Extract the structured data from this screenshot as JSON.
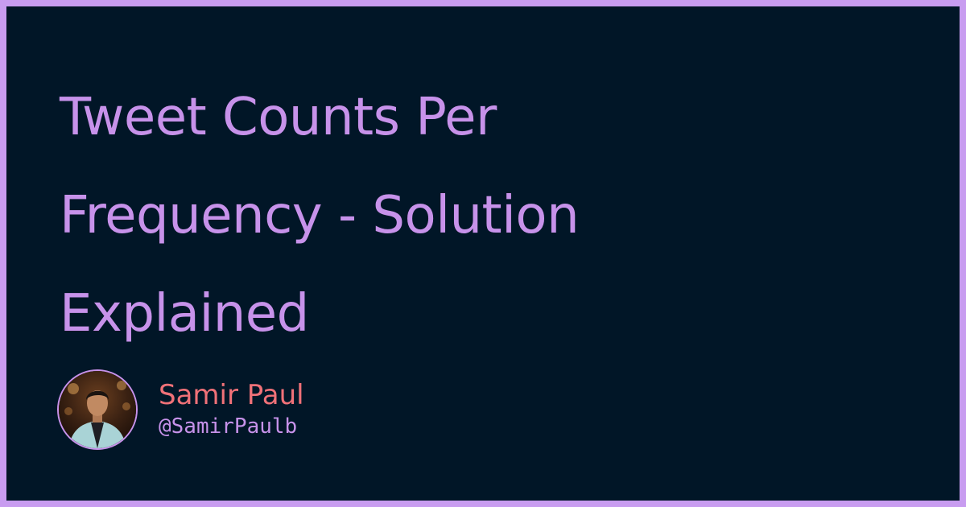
{
  "title_lines": [
    "Tweet Counts Per",
    "Frequency - Solution",
    "Explained"
  ],
  "author": {
    "name": "Samir Paul",
    "handle": "@SamirPaulb",
    "avatar_icon": "person-photo-avatar"
  },
  "colors": {
    "background": "#011627",
    "border": "#c89cf0",
    "title": "#c792ea",
    "name": "#f07178",
    "handle": "#c792ea"
  }
}
